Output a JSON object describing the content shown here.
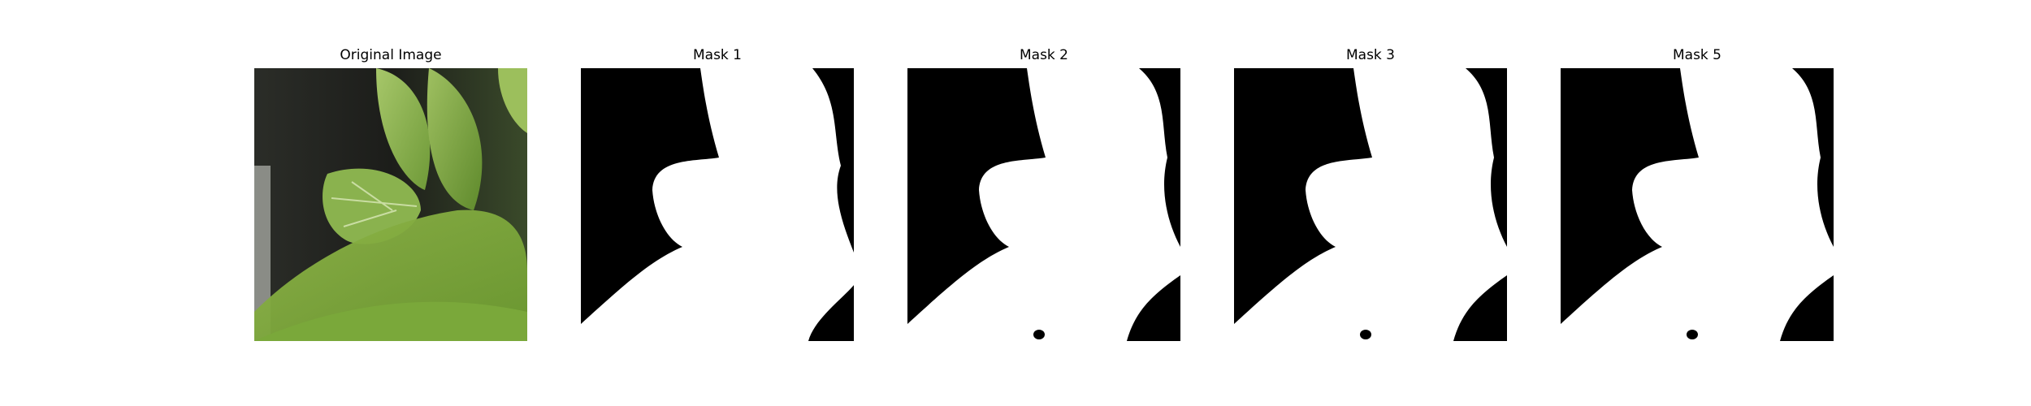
{
  "figure": {
    "panels": [
      {
        "title": "Original Image",
        "kind": "photo",
        "subject": "green leafy plant (bok choy) close-up"
      },
      {
        "title": "Mask 1",
        "kind": "binary-mask"
      },
      {
        "title": "Mask 2",
        "kind": "binary-mask"
      },
      {
        "title": "Mask 3",
        "kind": "binary-mask"
      },
      {
        "title": "Mask 5",
        "kind": "binary-mask"
      }
    ],
    "colors": {
      "mask_foreground": "#ffffff",
      "mask_background": "#000000",
      "leaf_green": "#8fb34a",
      "dark_background": "#1e1f1c"
    }
  }
}
